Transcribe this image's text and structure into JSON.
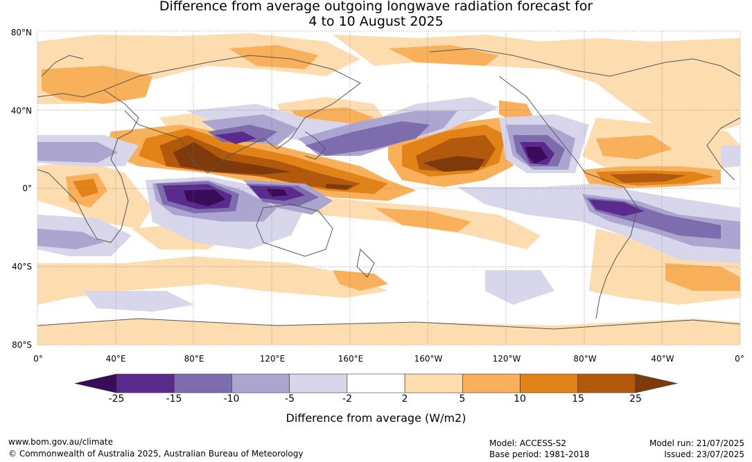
{
  "title": {
    "line1": "Difference from average outgoing longwave radiation forecast for",
    "line2": "4 to 10 August 2025"
  },
  "axes": {
    "lat_labels": [
      "80°N",
      "40°N",
      "0°",
      "40°S",
      "80°S"
    ],
    "lon_labels": [
      "0°",
      "40°E",
      "80°E",
      "120°E",
      "160°E",
      "160°W",
      "120°W",
      "80°W",
      "40°W",
      "0°"
    ]
  },
  "legend": {
    "label": "Difference from average (W/m2)",
    "ticks": [
      "-25",
      "-15",
      "-10",
      "-5",
      "-2",
      "2",
      "5",
      "10",
      "15",
      "25"
    ],
    "colors": [
      "#3a0b58",
      "#5a2a8c",
      "#7d6dae",
      "#aba5cf",
      "#d7d6ea",
      "#ffffff",
      "#fddcb0",
      "#f8b05a",
      "#e28318",
      "#b2590e",
      "#7e3a0a"
    ]
  },
  "footer": {
    "website": "www.bom.gov.au/climate",
    "copyright": "© Commonwealth of Australia 2025, Australian Bureau of Meteorology",
    "model": "Model: ACCESS-S2",
    "base_period": "Base period: 1981-2018",
    "model_run": "Model run: 21/07/2025",
    "issued": "Issued: 23/07/2025"
  }
}
